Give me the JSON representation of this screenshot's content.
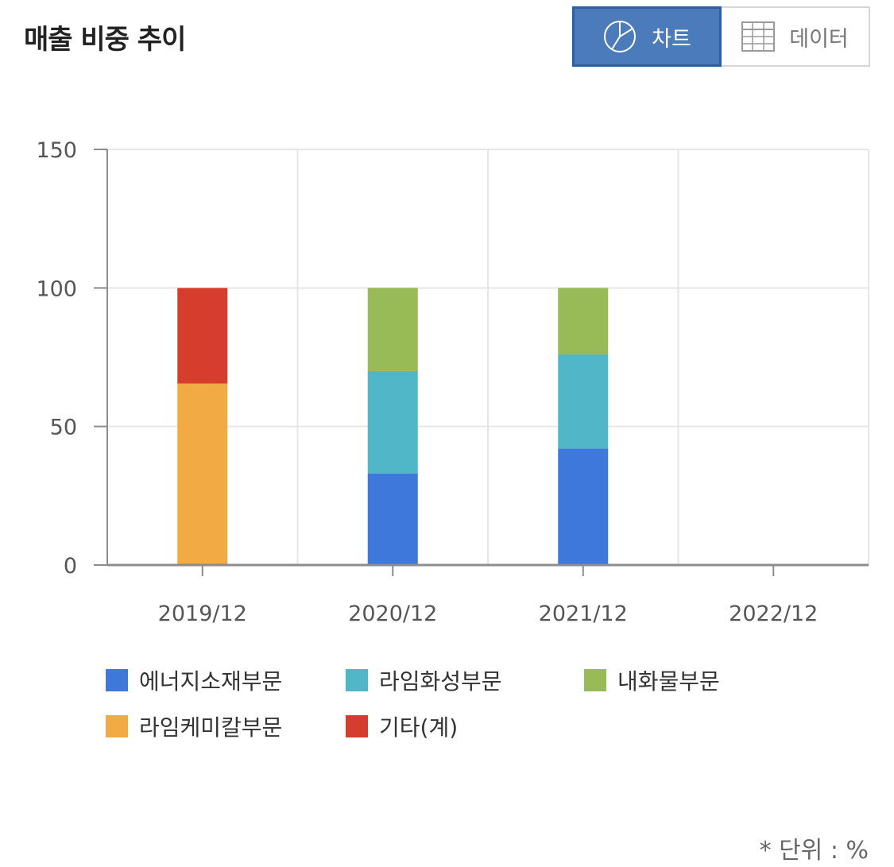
{
  "header": {
    "title": "매출 비중 추이",
    "toggle": {
      "chart_label": "차트",
      "data_label": "데이터",
      "selected": "chart"
    }
  },
  "colors": {
    "accent": "#4c7bbb",
    "grid": "#e6e6e6",
    "axis": "#8c8c8c"
  },
  "chart_data": {
    "type": "bar",
    "stacked": true,
    "categories": [
      "2019/12",
      "2020/12",
      "2021/12",
      "2022/12"
    ],
    "ylim": [
      0,
      150
    ],
    "yticks": [
      0,
      50,
      100,
      150
    ],
    "grid": true,
    "legend_position": "bottom",
    "series": [
      {
        "name": "에너지소재부문",
        "color": "#3f78db",
        "values": [
          0,
          33,
          42,
          0
        ]
      },
      {
        "name": "라임화성부문",
        "color": "#52b6c9",
        "values": [
          0,
          37,
          34,
          0
        ]
      },
      {
        "name": "내화물부문",
        "color": "#98bb57",
        "values": [
          0,
          30,
          24,
          0
        ]
      },
      {
        "name": "라임케미칼부문",
        "color": "#f2aa44",
        "values": [
          65.5,
          0,
          0,
          0
        ]
      },
      {
        "name": "기타(계)",
        "color": "#d73d2d",
        "values": [
          34.5,
          0,
          0,
          0
        ]
      }
    ]
  },
  "footer": {
    "unit_note": "* 단위 : %"
  }
}
